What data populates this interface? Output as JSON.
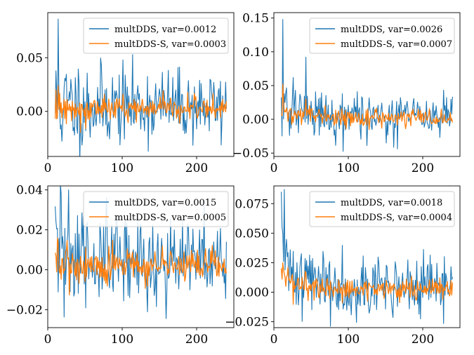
{
  "colors": {
    "series_a": "#1f77b4",
    "series_b": "#ff7f0e"
  },
  "chart_data": [
    {
      "type": "line",
      "xlim": [
        0,
        250
      ],
      "ylim": [
        -0.042,
        0.092
      ],
      "xticks": [
        0,
        100,
        200
      ],
      "xtick_labels": [
        "0",
        "100",
        "200"
      ],
      "yticks": [
        0.0,
        0.05
      ],
      "ytick_labels": [
        "0.00",
        "0.05"
      ],
      "legend_position": "top-right",
      "series": [
        {
          "name": "multDDS, var=0.0012",
          "start": 10,
          "end": 240,
          "peaks": [
            [
              14,
              0.086
            ]
          ],
          "baseline": 0.005,
          "noise": 0.016,
          "decay": 0.0,
          "seed": 11
        },
        {
          "name": "multDDS-S, var=0.0003",
          "start": 10,
          "end": 240,
          "peaks": [
            [
              14,
              0.024
            ]
          ],
          "baseline": 0.003,
          "noise": 0.0055,
          "decay": 0.0,
          "seed": 12
        }
      ]
    },
    {
      "type": "line",
      "xlim": [
        0,
        250
      ],
      "ylim": [
        -0.055,
        0.158
      ],
      "xticks": [
        0,
        100,
        200
      ],
      "xtick_labels": [
        "0",
        "100",
        "200"
      ],
      "yticks": [
        -0.05,
        0.0,
        0.05,
        0.1,
        0.15
      ],
      "ytick_labels": [
        "−0.05",
        "0.00",
        "0.05",
        "0.10",
        "0.15"
      ],
      "legend_position": "top-right",
      "series": [
        {
          "name": "multDDS, var=0.0026",
          "start": 10,
          "end": 240,
          "peaks": [
            [
              12,
              0.148
            ],
            [
              43,
              0.092
            ],
            [
              26,
              0.062
            ]
          ],
          "baseline": 0.004,
          "noise": 0.015,
          "decay": 0.012,
          "seed": 21
        },
        {
          "name": "multDDS-S, var=0.0007",
          "start": 10,
          "end": 240,
          "peaks": [
            [
              12,
              0.052
            ],
            [
              43,
              0.03
            ]
          ],
          "baseline": 0.002,
          "noise": 0.0055,
          "decay": 0.008,
          "seed": 22
        }
      ]
    },
    {
      "type": "line",
      "xlim": [
        0,
        250
      ],
      "ylim": [
        -0.029,
        0.042
      ],
      "xticks": [
        0,
        100,
        200
      ],
      "xtick_labels": [
        "0",
        "100",
        "200"
      ],
      "yticks": [
        -0.02,
        0.0,
        0.02,
        0.04
      ],
      "ytick_labels": [
        "−0.02",
        "0.00",
        "0.02",
        "0.04"
      ],
      "legend_position": "top-right",
      "series": [
        {
          "name": "multDDS, var=0.0015",
          "start": 10,
          "end": 240,
          "peaks": [
            [
              28,
              0.04
            ],
            [
              18,
              0.038
            ]
          ],
          "baseline": 0.004,
          "noise": 0.011,
          "decay": 0.003,
          "seed": 31
        },
        {
          "name": "multDDS-S, var=0.0005",
          "start": 10,
          "end": 240,
          "peaks": [
            [
              14,
              0.014
            ]
          ],
          "baseline": 0.002,
          "noise": 0.004,
          "decay": 0.002,
          "seed": 32
        }
      ]
    },
    {
      "type": "line",
      "xlim": [
        0,
        250
      ],
      "ylim": [
        -0.03,
        0.09
      ],
      "xticks": [
        0,
        100,
        200
      ],
      "xtick_labels": [
        "0",
        "100",
        "200"
      ],
      "yticks": [
        -0.025,
        0.0,
        0.025,
        0.05,
        0.075
      ],
      "ytick_labels": [
        "−0.025",
        "0.000",
        "0.025",
        "0.050",
        "0.075"
      ],
      "legend_position": "top-right",
      "series": [
        {
          "name": "multDDS, var=0.0018",
          "start": 10,
          "end": 240,
          "peaks": [
            [
              10,
              0.085
            ],
            [
              14,
              0.087
            ],
            [
              12,
              0.05
            ]
          ],
          "baseline": 0.004,
          "noise": 0.012,
          "decay": 0.02,
          "seed": 41
        },
        {
          "name": "multDDS-S, var=0.0004",
          "start": 10,
          "end": 240,
          "peaks": [
            [
              12,
              0.025
            ]
          ],
          "baseline": 0.002,
          "noise": 0.0045,
          "decay": 0.008,
          "seed": 42
        }
      ]
    }
  ]
}
